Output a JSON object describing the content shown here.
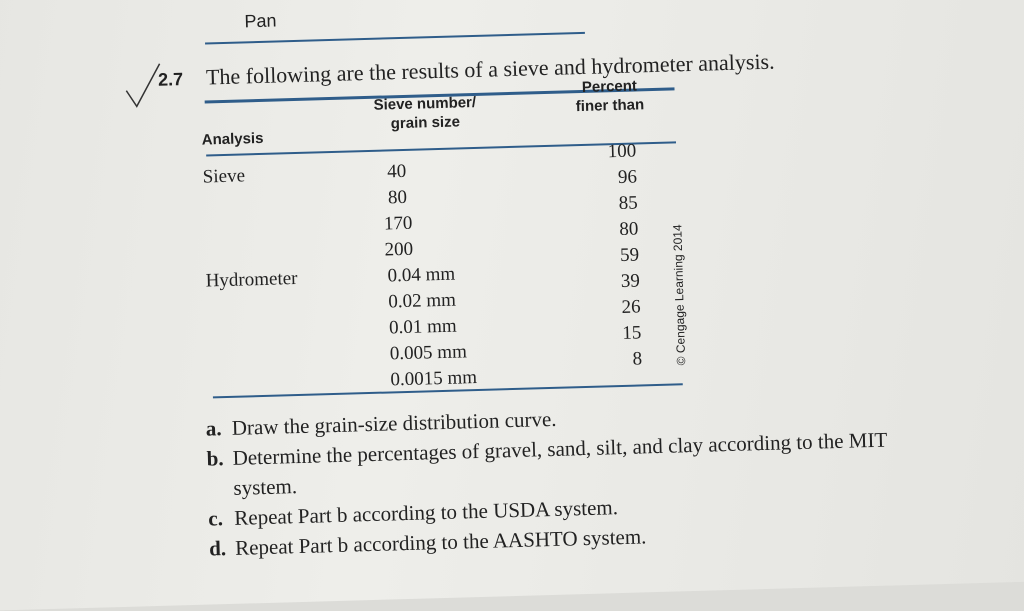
{
  "header": {
    "text": "Pan"
  },
  "problem": {
    "number": "2.7",
    "intro": "The following are the results of a sieve and hydrometer analysis."
  },
  "table": {
    "columns": [
      "Analysis",
      "Sieve number/",
      "grain size",
      "Percent",
      "finer than"
    ],
    "groups": [
      {
        "analysis": "Sieve",
        "rows": [
          [
            "40",
            100
          ],
          [
            "80",
            96
          ],
          [
            "170",
            85
          ],
          [
            "200",
            80
          ]
        ]
      },
      {
        "analysis": "Hydrometer",
        "rows": [
          [
            "0.04 mm",
            59
          ],
          [
            "0.02 mm",
            39
          ],
          [
            "0.01 mm",
            26
          ],
          [
            "0.005 mm",
            15
          ],
          [
            "0.0015 mm",
            8
          ]
        ]
      }
    ],
    "credit": "© Cengage Learning 2014"
  },
  "parts": [
    {
      "label": "a.",
      "text": "Draw the grain-size distribution curve."
    },
    {
      "label": "b.",
      "text": "Determine the percentages of gravel, sand, silt, and clay according to the MIT",
      "cont": "system."
    },
    {
      "label": "c.",
      "text": "Repeat Part b according to the USDA system."
    },
    {
      "label": "d.",
      "text": "Repeat Part b according to the AASHTO system."
    }
  ]
}
